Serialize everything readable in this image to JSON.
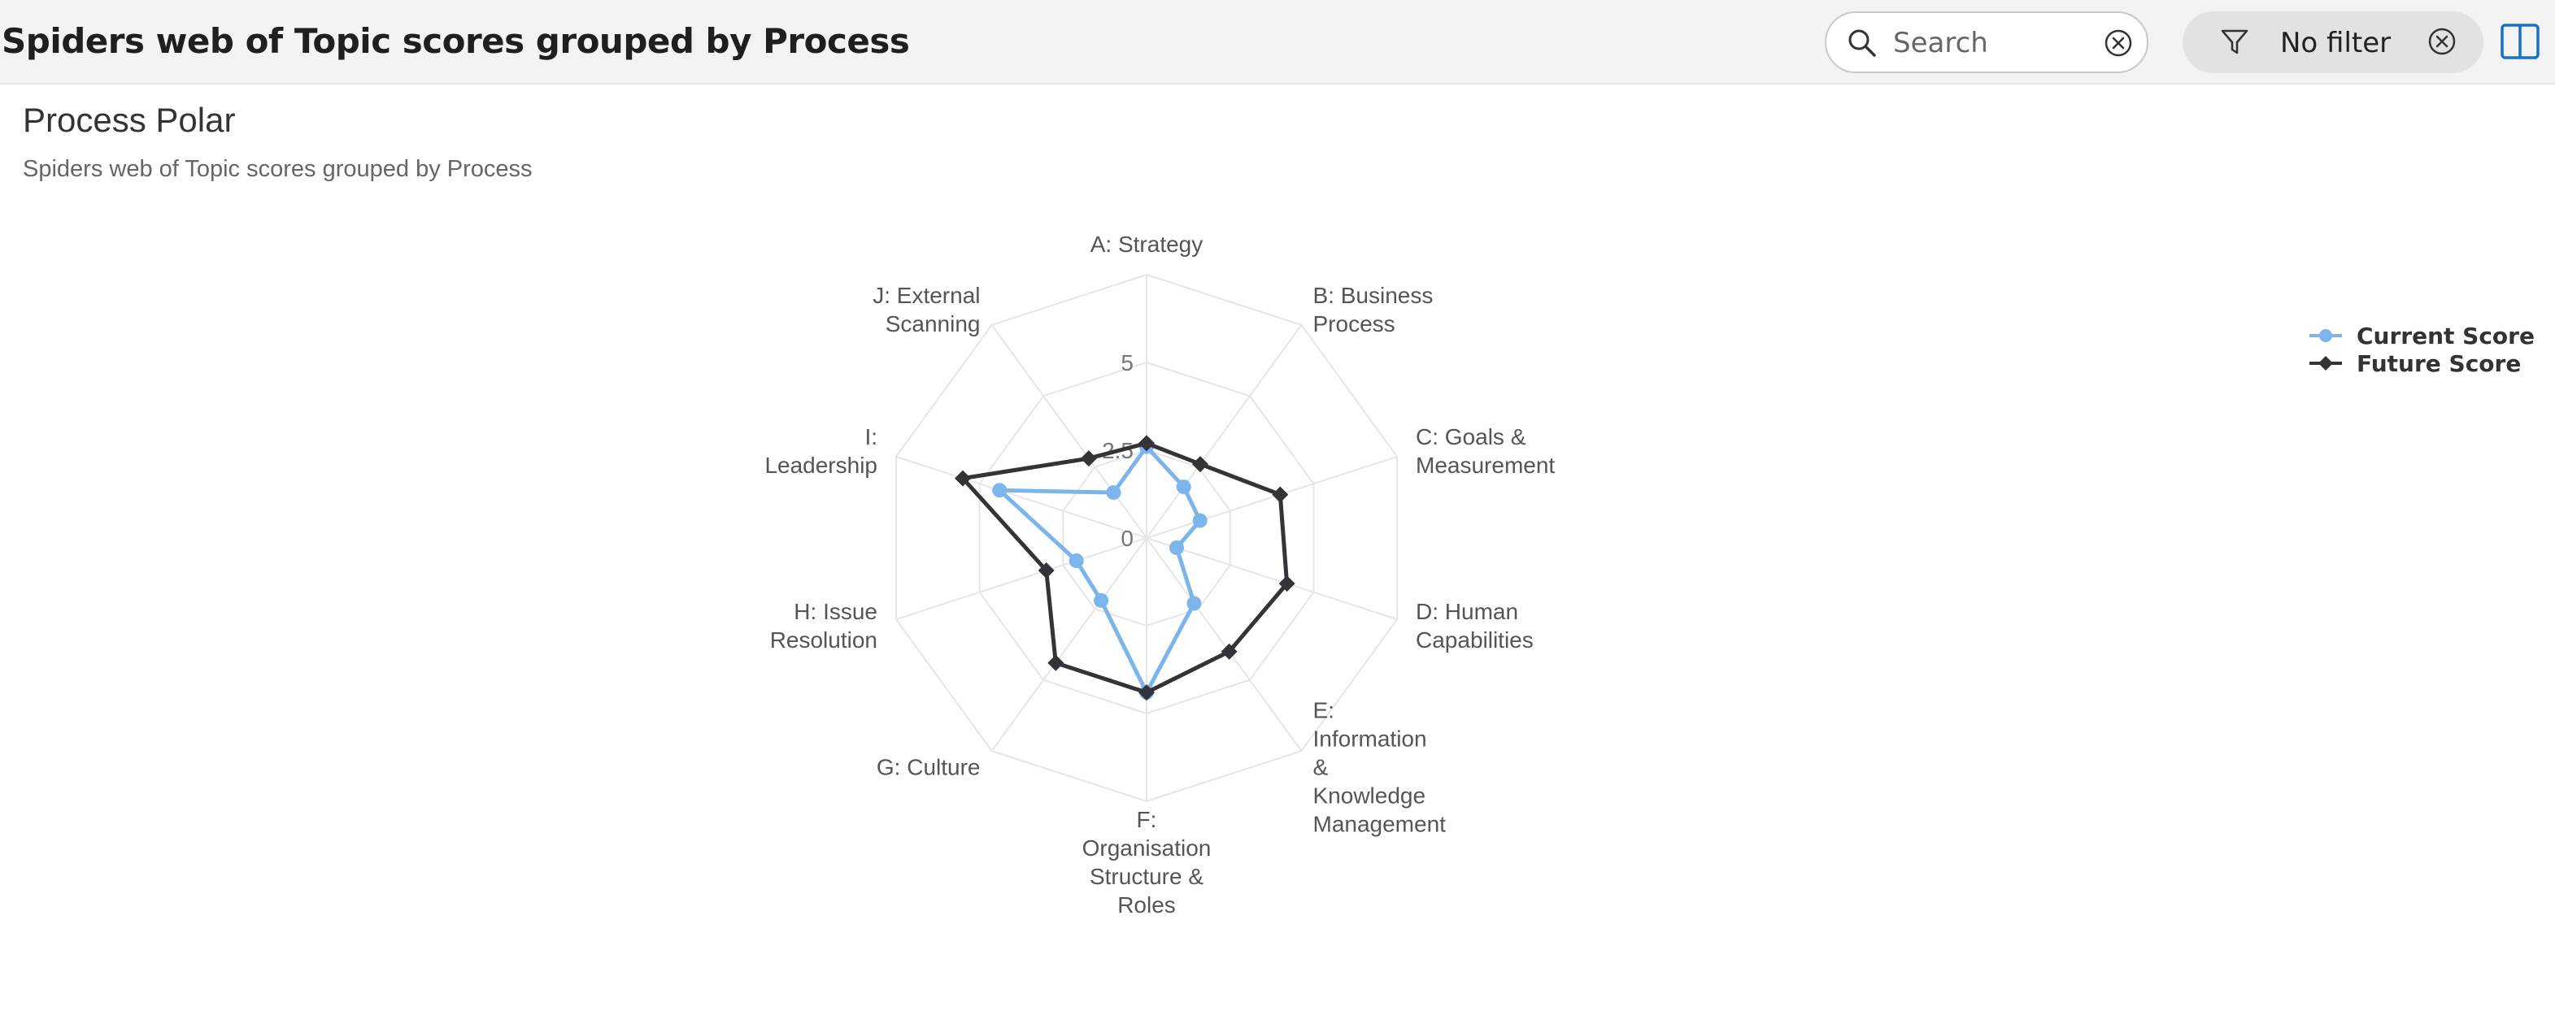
{
  "header": {
    "title": "Spiders web of Topic scores grouped by Process",
    "search": {
      "placeholder": "Search",
      "value": ""
    },
    "filter": {
      "label": "No filter"
    }
  },
  "card": {
    "title": "Process Polar",
    "subtitle": "Spiders web of Topic scores grouped by Process"
  },
  "colors": {
    "current": "#7cb5ec",
    "future": "#333338",
    "grid": "#e6e6e6"
  },
  "chart_data": {
    "type": "radar",
    "categories": [
      "A: Strategy",
      "B: Business Process",
      "C: Goals & Measurement",
      "D: Human Capabilities",
      "E: Information & Knowledge Management",
      "F: Organisation Structure & Roles",
      "G: Culture",
      "H: Issue Resolution",
      "I: Leadership",
      "J: External Scanning"
    ],
    "category_lines": [
      [
        "A: Strategy"
      ],
      [
        "B: Business",
        "Process"
      ],
      [
        "C: Goals &",
        "Measurement"
      ],
      [
        "D: Human",
        "Capabilities"
      ],
      [
        "E:",
        "Information",
        "&",
        "Knowledge",
        "Management"
      ],
      [
        "F:",
        "Organisation",
        "Structure &",
        "Roles"
      ],
      [
        "G: Culture"
      ],
      [
        "H: Issue",
        "Resolution"
      ],
      [
        "I:",
        "Leadership"
      ],
      [
        "J: External",
        "Scanning"
      ]
    ],
    "radial_ticks": [
      {
        "value": 0,
        "label": "0"
      },
      {
        "value": 2.5,
        "label": "2.5"
      },
      {
        "value": 5,
        "label": "5"
      }
    ],
    "rmax": 7.5,
    "grid_steps": [
      2.5,
      5,
      7.5
    ],
    "legend_position": "top-right",
    "series": [
      {
        "name": "Current Score",
        "marker": "circle",
        "values": [
          2.6,
          1.8,
          1.6,
          0.9,
          2.3,
          4.4,
          2.2,
          2.1,
          4.4,
          1.6
        ]
      },
      {
        "name": "Future Score",
        "marker": "diamond",
        "values": [
          2.7,
          2.6,
          4.0,
          4.2,
          4.0,
          4.4,
          4.4,
          3.0,
          5.5,
          2.8
        ]
      }
    ]
  }
}
